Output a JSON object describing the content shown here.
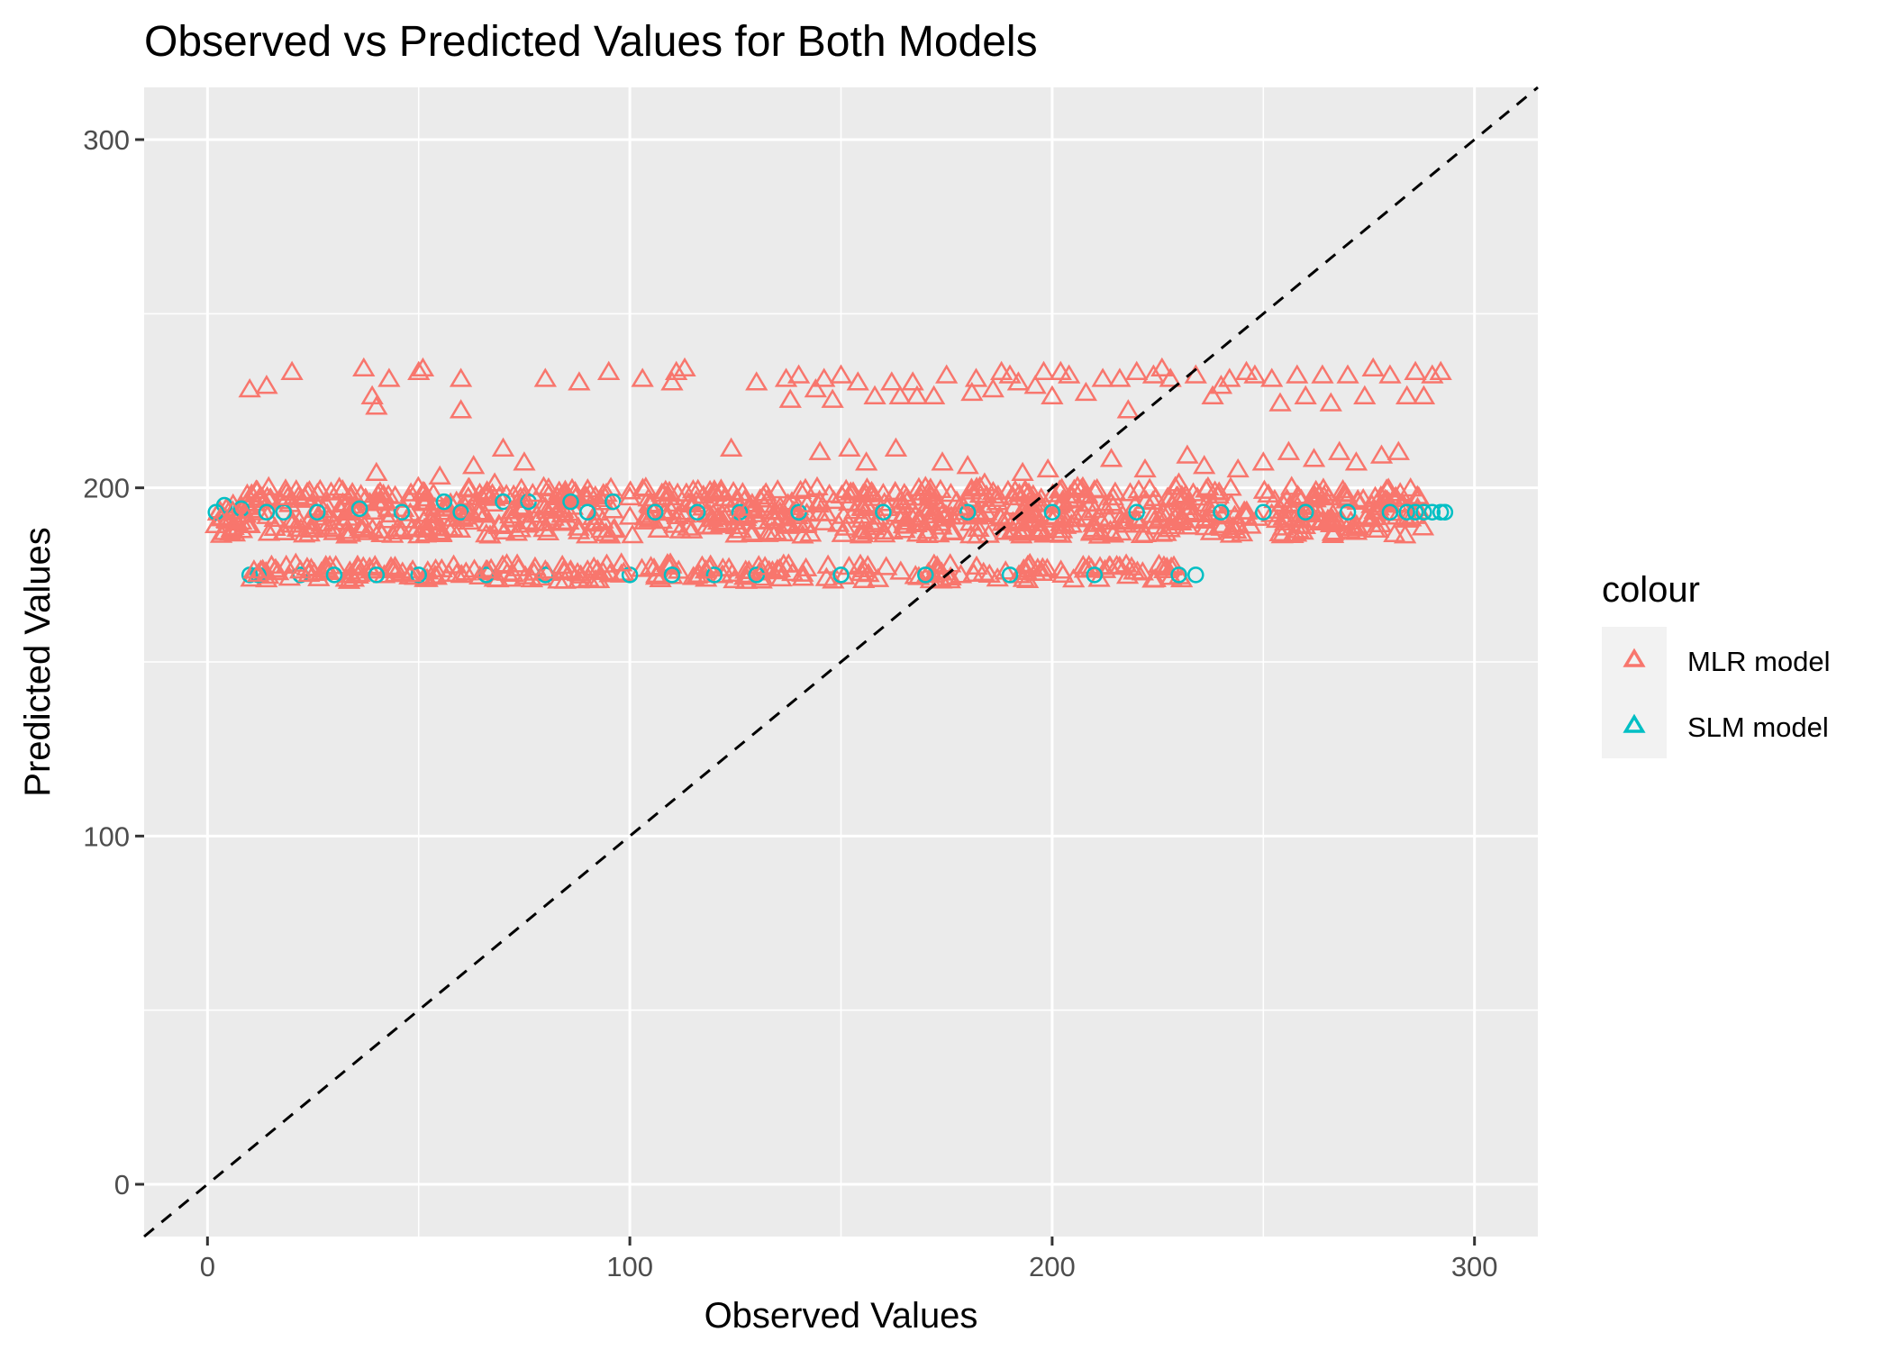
{
  "chart_data": {
    "type": "scatter",
    "title": "Observed vs Predicted Values for Both Models",
    "xlabel": "Observed Values",
    "ylabel": "Predicted Values",
    "xlim": [
      -15,
      315
    ],
    "ylim": [
      -15,
      315
    ],
    "x_ticks": [
      0,
      100,
      200,
      300
    ],
    "y_ticks": [
      0,
      100,
      200,
      300
    ],
    "x_tick_labels": [
      "0",
      "100",
      "200",
      "300"
    ],
    "y_tick_labels": [
      "0",
      "100",
      "200",
      "300"
    ],
    "grid": true,
    "reference_line": {
      "style": "dashed",
      "color": "#000000",
      "slope": 1,
      "intercept": 0
    },
    "legend": {
      "title": "colour",
      "placement": "right",
      "entries": [
        "MLR model",
        "SLM model"
      ]
    },
    "series": [
      {
        "name": "MLR model",
        "marker": "triangle",
        "color": "#F8766D",
        "points": [
          [
            2,
            189
          ],
          [
            3,
            191
          ],
          [
            4,
            187
          ],
          [
            6,
            193
          ],
          [
            8,
            190
          ],
          [
            9,
            192
          ],
          [
            10,
            189
          ],
          [
            10,
            228
          ],
          [
            11,
            176
          ],
          [
            12,
            175
          ],
          [
            14,
            229
          ],
          [
            18,
            187
          ],
          [
            19,
            197
          ],
          [
            20,
            233
          ],
          [
            21,
            199
          ],
          [
            22,
            176
          ],
          [
            24,
            175
          ],
          [
            26,
            198
          ],
          [
            30,
            187
          ],
          [
            32,
            199
          ],
          [
            36,
            175
          ],
          [
            37,
            234
          ],
          [
            38,
            187
          ],
          [
            39,
            226
          ],
          [
            40,
            204
          ],
          [
            40,
            223
          ],
          [
            42,
            196
          ],
          [
            43,
            231
          ],
          [
            45,
            188
          ],
          [
            48,
            175
          ],
          [
            50,
            233
          ],
          [
            51,
            234
          ],
          [
            55,
            203
          ],
          [
            59,
            175
          ],
          [
            60,
            231
          ],
          [
            60,
            222
          ],
          [
            62,
            190
          ],
          [
            63,
            206
          ],
          [
            65,
            197
          ],
          [
            66,
            176
          ],
          [
            68,
            201
          ],
          [
            70,
            211
          ],
          [
            72,
            193
          ],
          [
            75,
            207
          ],
          [
            77,
            198
          ],
          [
            80,
            176
          ],
          [
            80,
            231
          ],
          [
            84,
            192
          ],
          [
            86,
            176
          ],
          [
            88,
            230
          ],
          [
            90,
            176
          ],
          [
            95,
            233
          ],
          [
            98,
            178
          ],
          [
            100,
            197
          ],
          [
            103,
            231
          ],
          [
            105,
            177
          ],
          [
            108,
            198
          ],
          [
            110,
            230
          ],
          [
            111,
            233
          ],
          [
            113,
            234
          ],
          [
            115,
            199
          ],
          [
            118,
            176
          ],
          [
            120,
            199
          ],
          [
            124,
            211
          ],
          [
            125,
            190
          ],
          [
            128,
            194
          ],
          [
            130,
            230
          ],
          [
            132,
            177
          ],
          [
            135,
            199
          ],
          [
            137,
            231
          ],
          [
            138,
            225
          ],
          [
            140,
            232
          ],
          [
            142,
            195
          ],
          [
            144,
            228
          ],
          [
            145,
            210
          ],
          [
            146,
            231
          ],
          [
            148,
            225
          ],
          [
            150,
            232
          ],
          [
            152,
            211
          ],
          [
            154,
            230
          ],
          [
            155,
            194
          ],
          [
            156,
            207
          ],
          [
            158,
            226
          ],
          [
            160,
            198
          ],
          [
            162,
            230
          ],
          [
            163,
            211
          ],
          [
            164,
            226
          ],
          [
            165,
            198
          ],
          [
            167,
            230
          ],
          [
            168,
            226
          ],
          [
            170,
            200
          ],
          [
            172,
            226
          ],
          [
            174,
            207
          ],
          [
            175,
            232
          ],
          [
            176,
            198
          ],
          [
            178,
            194
          ],
          [
            180,
            206
          ],
          [
            181,
            227
          ],
          [
            182,
            231
          ],
          [
            184,
            201
          ],
          [
            186,
            228
          ],
          [
            188,
            233
          ],
          [
            190,
            232
          ],
          [
            192,
            230
          ],
          [
            193,
            204
          ],
          [
            195,
            195
          ],
          [
            196,
            229
          ],
          [
            198,
            233
          ],
          [
            199,
            205
          ],
          [
            200,
            226
          ],
          [
            202,
            233
          ],
          [
            204,
            232
          ],
          [
            206,
            200
          ],
          [
            208,
            227
          ],
          [
            210,
            199
          ],
          [
            212,
            231
          ],
          [
            214,
            208
          ],
          [
            216,
            231
          ],
          [
            218,
            222
          ],
          [
            220,
            233
          ],
          [
            222,
            205
          ],
          [
            224,
            232
          ],
          [
            226,
            234
          ],
          [
            228,
            231
          ],
          [
            230,
            201
          ],
          [
            232,
            209
          ],
          [
            234,
            232
          ],
          [
            236,
            206
          ],
          [
            238,
            226
          ],
          [
            240,
            229
          ],
          [
            242,
            231
          ],
          [
            244,
            205
          ],
          [
            246,
            233
          ],
          [
            248,
            232
          ],
          [
            250,
            207
          ],
          [
            252,
            231
          ],
          [
            254,
            224
          ],
          [
            256,
            210
          ],
          [
            258,
            232
          ],
          [
            260,
            226
          ],
          [
            262,
            208
          ],
          [
            264,
            232
          ],
          [
            266,
            224
          ],
          [
            268,
            210
          ],
          [
            270,
            232
          ],
          [
            272,
            207
          ],
          [
            274,
            226
          ],
          [
            276,
            234
          ],
          [
            278,
            209
          ],
          [
            280,
            232
          ],
          [
            282,
            210
          ],
          [
            284,
            226
          ],
          [
            286,
            233
          ],
          [
            288,
            226
          ],
          [
            290,
            232
          ],
          [
            292,
            233
          ]
        ],
        "bands": [
          {
            "x_range": [
              2,
              288
            ],
            "y_range": [
              186,
              200
            ]
          },
          {
            "x_range": [
              10,
              233
            ],
            "y_range": [
              173,
              178
            ]
          }
        ]
      },
      {
        "name": "SLM model",
        "marker": "circle",
        "color": "#00BFC4",
        "points": [
          [
            2,
            193
          ],
          [
            4,
            195
          ],
          [
            8,
            194
          ],
          [
            10,
            175
          ],
          [
            12,
            175
          ],
          [
            14,
            193
          ],
          [
            18,
            193
          ],
          [
            22,
            175
          ],
          [
            26,
            193
          ],
          [
            30,
            175
          ],
          [
            36,
            194
          ],
          [
            40,
            175
          ],
          [
            46,
            193
          ],
          [
            50,
            175
          ],
          [
            56,
            196
          ],
          [
            60,
            193
          ],
          [
            66,
            175
          ],
          [
            70,
            196
          ],
          [
            76,
            196
          ],
          [
            80,
            175
          ],
          [
            86,
            196
          ],
          [
            90,
            193
          ],
          [
            96,
            196
          ],
          [
            100,
            175
          ],
          [
            106,
            193
          ],
          [
            110,
            175
          ],
          [
            116,
            193
          ],
          [
            120,
            175
          ],
          [
            126,
            193
          ],
          [
            130,
            175
          ],
          [
            140,
            193
          ],
          [
            150,
            175
          ],
          [
            160,
            193
          ],
          [
            170,
            175
          ],
          [
            180,
            193
          ],
          [
            190,
            175
          ],
          [
            200,
            193
          ],
          [
            210,
            175
          ],
          [
            220,
            193
          ],
          [
            230,
            175
          ],
          [
            234,
            175
          ],
          [
            240,
            193
          ],
          [
            250,
            193
          ],
          [
            260,
            193
          ],
          [
            270,
            193
          ],
          [
            280,
            193
          ],
          [
            284,
            193
          ],
          [
            286,
            193
          ],
          [
            288,
            193
          ],
          [
            290,
            193
          ],
          [
            292,
            193
          ],
          [
            293,
            193
          ]
        ]
      }
    ]
  }
}
